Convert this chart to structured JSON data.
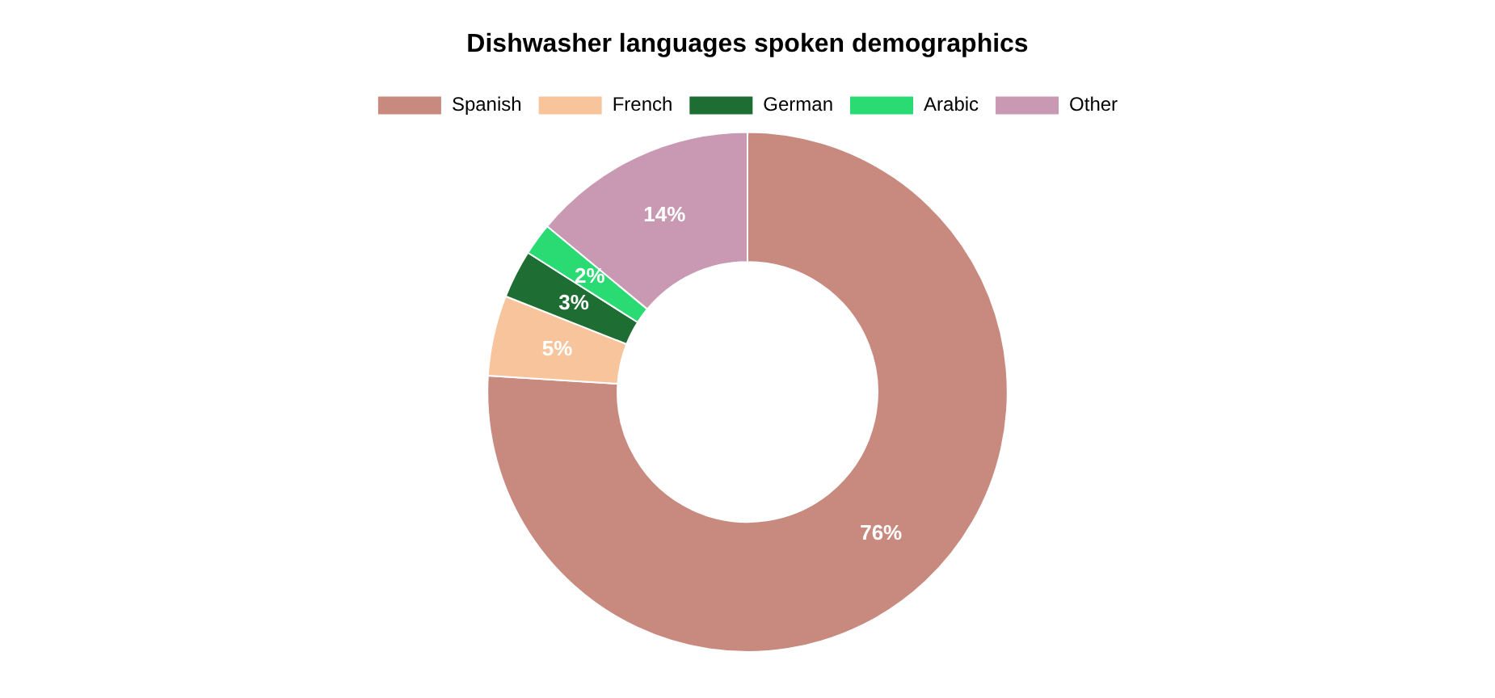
{
  "chart_data": {
    "type": "donut",
    "title": "Dishwasher languages spoken demographics",
    "categories": [
      "Spanish",
      "French",
      "German",
      "Arabic",
      "Other"
    ],
    "values": [
      76,
      5,
      3,
      2,
      14
    ],
    "colors": [
      "#c88a7e",
      "#f8c49c",
      "#1e6e34",
      "#2adb74",
      "#c998b2"
    ],
    "value_labels": [
      "76%",
      "5%",
      "3%",
      "2%",
      "14%"
    ],
    "legend": "top"
  }
}
